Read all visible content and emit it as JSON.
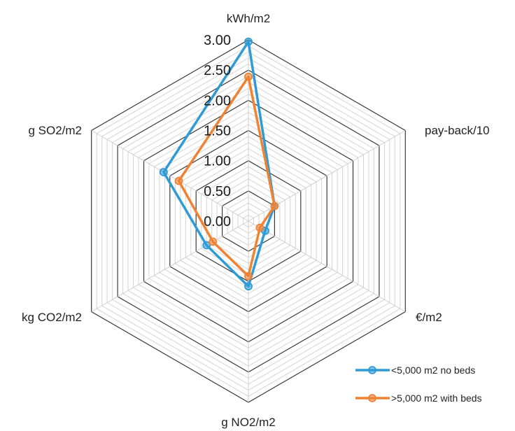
{
  "chart_data": {
    "type": "radar",
    "axes": [
      "kWh/m2",
      "pay-back/10",
      "€/m2",
      "g NO2/m2",
      "kg CO2/m2",
      "g SO2/m2"
    ],
    "rlim": [
      0,
      3
    ],
    "ticks": [
      "0.00",
      "0.50",
      "1.00",
      "1.50",
      "2.00",
      "2.50",
      "3.00"
    ],
    "tick_values": [
      0,
      0.5,
      1,
      1.5,
      2,
      2.5,
      3
    ],
    "minor_step": 0.1,
    "grid": true,
    "legend_position": "bottom-right",
    "series": [
      {
        "name": "<5,000 m2 no beds",
        "color": "#2E9BD6",
        "values": [
          2.97,
          0.5,
          0.32,
          1.08,
          0.8,
          1.62
        ]
      },
      {
        "name": ">5,000 m2 with beds",
        "color": "#F08232",
        "values": [
          2.39,
          0.5,
          0.22,
          0.91,
          0.68,
          1.33
        ]
      }
    ]
  }
}
